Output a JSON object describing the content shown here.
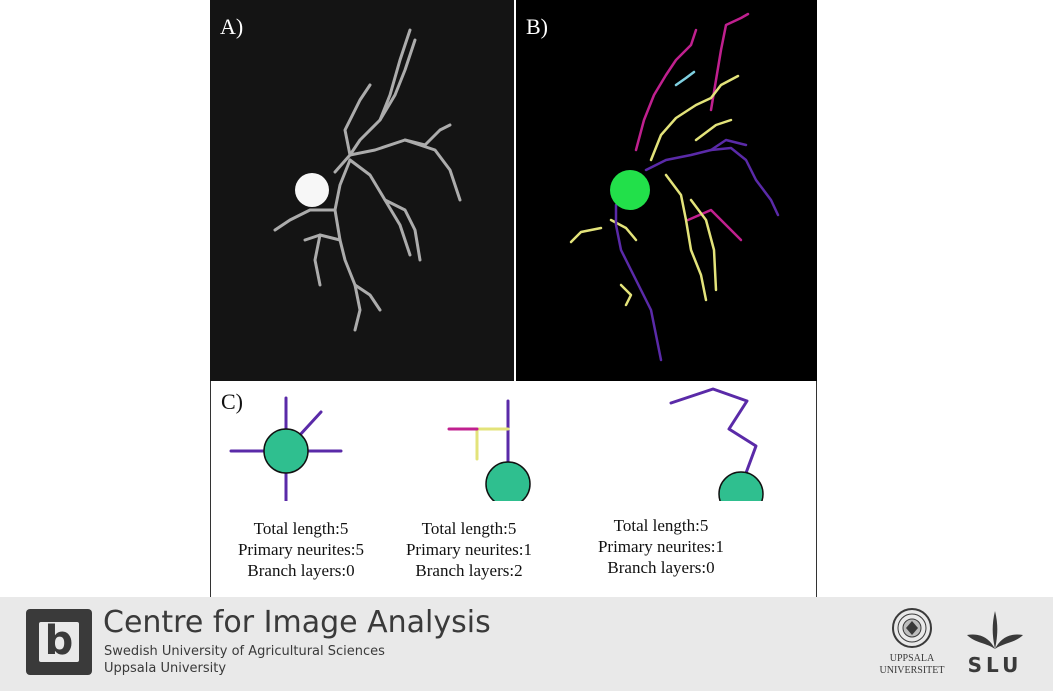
{
  "figure": {
    "panel_a_label": "A)",
    "panel_b_label": "B)",
    "panel_c_label": "C)",
    "examples": [
      {
        "total_length": "Total length:5",
        "primary_neurites": "Primary neurites:5",
        "branch_layers": "Branch layers:0"
      },
      {
        "total_length": "Total length:5",
        "primary_neurites": "Primary neurites:1",
        "branch_layers": "Branch layers:2"
      },
      {
        "total_length": "Total length:5",
        "primary_neurites": "Primary neurites:1",
        "branch_layers": "Branch layers:0"
      }
    ],
    "colors": {
      "soma": "#2fbf8f",
      "soma_bright": "#22e04a",
      "primary": "#5a2aa8",
      "secondary": "#e3e37a",
      "tertiary": "#c0208f",
      "quaternary": "#7fd0e0",
      "neuron_gray": "#c8c8c8"
    }
  },
  "footer": {
    "logo_letter": "b",
    "title": "Centre for Image Analysis",
    "subtitle_line1": "Swedish University of Agricultural Sciences",
    "subtitle_line2": "Uppsala University",
    "uu_line1": "UPPSALA",
    "uu_line2": "UNIVERSITET",
    "slu_text": "SLU"
  }
}
